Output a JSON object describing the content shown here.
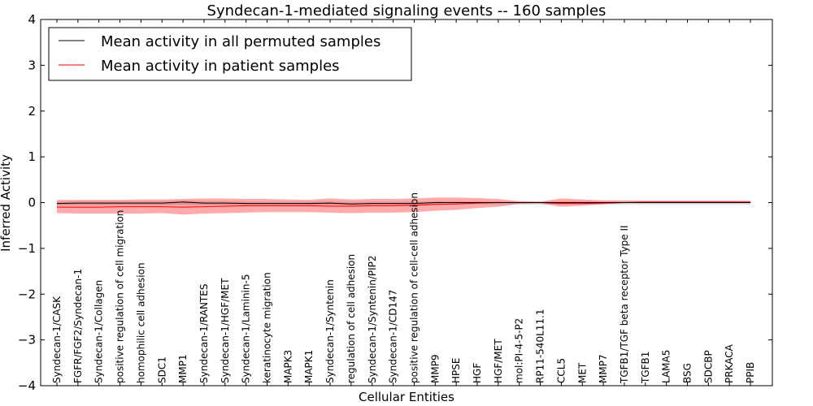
{
  "chart_data": {
    "type": "line",
    "title": "Syndecan-1-mediated signaling events -- 160 samples",
    "xlabel": "Cellular Entities",
    "ylabel": "Inferred Activity",
    "ylim": [
      -4,
      4
    ],
    "yticks": [
      -4,
      -3,
      -2,
      -1,
      0,
      1,
      2,
      3,
      4
    ],
    "ytick_labels": [
      "−4",
      "−3",
      "−2",
      "−1",
      "0",
      "1",
      "2",
      "3",
      "4"
    ],
    "grid": false,
    "legend_position": "top-left",
    "categories": [
      "Syndecan-1/CASK",
      "FGFR/FGF2/Syndecan-1",
      "Syndecan-1/Collagen",
      "positive regulation of cell migration",
      "homophilic cell adhesion",
      "SDC1",
      "MMP1",
      "Syndecan-1/RANTES",
      "Syndecan-1/HGF/MET",
      "Syndecan-1/Laminin-5",
      "keratinocyte migration",
      "MAPK3",
      "MAPK1",
      "Syndecan-1/Syntenin",
      "regulation of cell adhesion",
      "Syndecan-1/Syntenin/PIP2",
      "Syndecan-1/CD147",
      "positive regulation of cell-cell adhesion",
      "MMP9",
      "HPSE",
      "HGF",
      "HGF/MET",
      "mol:PI-4-5-P2",
      "RP11-540L11.1",
      "CCL5",
      "MET",
      "MMP7",
      "TGFB1/TGF beta receptor Type II",
      "TGFB1",
      "LAMA5",
      "BSG",
      "SDCBP",
      "PRKACA",
      "PPIB"
    ],
    "series": [
      {
        "name": "Mean activity in all permuted samples",
        "color": "#000000",
        "values": [
          -0.02,
          -0.01,
          -0.01,
          -0.01,
          -0.01,
          -0.01,
          0.01,
          -0.01,
          -0.01,
          -0.02,
          -0.02,
          -0.02,
          -0.02,
          -0.01,
          -0.03,
          -0.02,
          -0.02,
          -0.02,
          0.0,
          0.0,
          0.0,
          0.0,
          0.0,
          0.0,
          0.0,
          0.0,
          0.0,
          0.0,
          0.0,
          0.0,
          0.0,
          0.0,
          0.0,
          0.0
        ],
        "band_low": [
          -0.06,
          -0.06,
          -0.06,
          -0.06,
          -0.06,
          -0.06,
          -0.05,
          -0.06,
          -0.06,
          -0.06,
          -0.06,
          -0.06,
          -0.06,
          -0.06,
          -0.07,
          -0.06,
          -0.06,
          -0.06,
          -0.04,
          -0.04,
          -0.04,
          -0.04,
          -0.04,
          -0.04,
          -0.04,
          -0.04,
          -0.04,
          -0.04,
          -0.04,
          -0.04,
          -0.04,
          -0.04,
          -0.04,
          -0.04
        ],
        "band_high": [
          0.02,
          0.03,
          0.03,
          0.03,
          0.03,
          0.03,
          0.05,
          0.03,
          0.03,
          0.02,
          0.02,
          0.02,
          0.02,
          0.03,
          0.01,
          0.02,
          0.02,
          0.02,
          0.03,
          0.03,
          0.03,
          0.03,
          0.03,
          0.03,
          0.03,
          0.03,
          0.03,
          0.03,
          0.03,
          0.03,
          0.03,
          0.03,
          0.03,
          0.03
        ]
      },
      {
        "name": "Mean activity in patient samples",
        "color": "#ff0000",
        "values": [
          -0.1,
          -0.1,
          -0.1,
          -0.09,
          -0.09,
          -0.09,
          -0.1,
          -0.09,
          -0.08,
          -0.07,
          -0.07,
          -0.07,
          -0.07,
          -0.08,
          -0.08,
          -0.07,
          -0.07,
          -0.06,
          -0.04,
          -0.03,
          -0.01,
          0.0,
          0.0,
          0.0,
          -0.02,
          -0.02,
          -0.01,
          0.0,
          0.01,
          0.01,
          0.01,
          0.01,
          0.01,
          0.01
        ],
        "band_low": [
          -0.23,
          -0.24,
          -0.24,
          -0.24,
          -0.24,
          -0.23,
          -0.26,
          -0.24,
          -0.23,
          -0.22,
          -0.21,
          -0.21,
          -0.21,
          -0.22,
          -0.23,
          -0.22,
          -0.22,
          -0.21,
          -0.18,
          -0.16,
          -0.12,
          -0.09,
          -0.03,
          -0.02,
          -0.09,
          -0.07,
          -0.04,
          -0.01,
          -0.01,
          -0.01,
          -0.01,
          -0.01,
          -0.01,
          -0.01
        ],
        "band_high": [
          0.06,
          0.06,
          0.06,
          0.06,
          0.07,
          0.07,
          0.08,
          0.09,
          0.09,
          0.08,
          0.08,
          0.07,
          0.06,
          0.09,
          0.07,
          0.08,
          0.08,
          0.09,
          0.11,
          0.11,
          0.1,
          0.08,
          0.03,
          0.02,
          0.09,
          0.07,
          0.05,
          0.05,
          0.04,
          0.04,
          0.04,
          0.04,
          0.04,
          0.04
        ]
      }
    ]
  }
}
